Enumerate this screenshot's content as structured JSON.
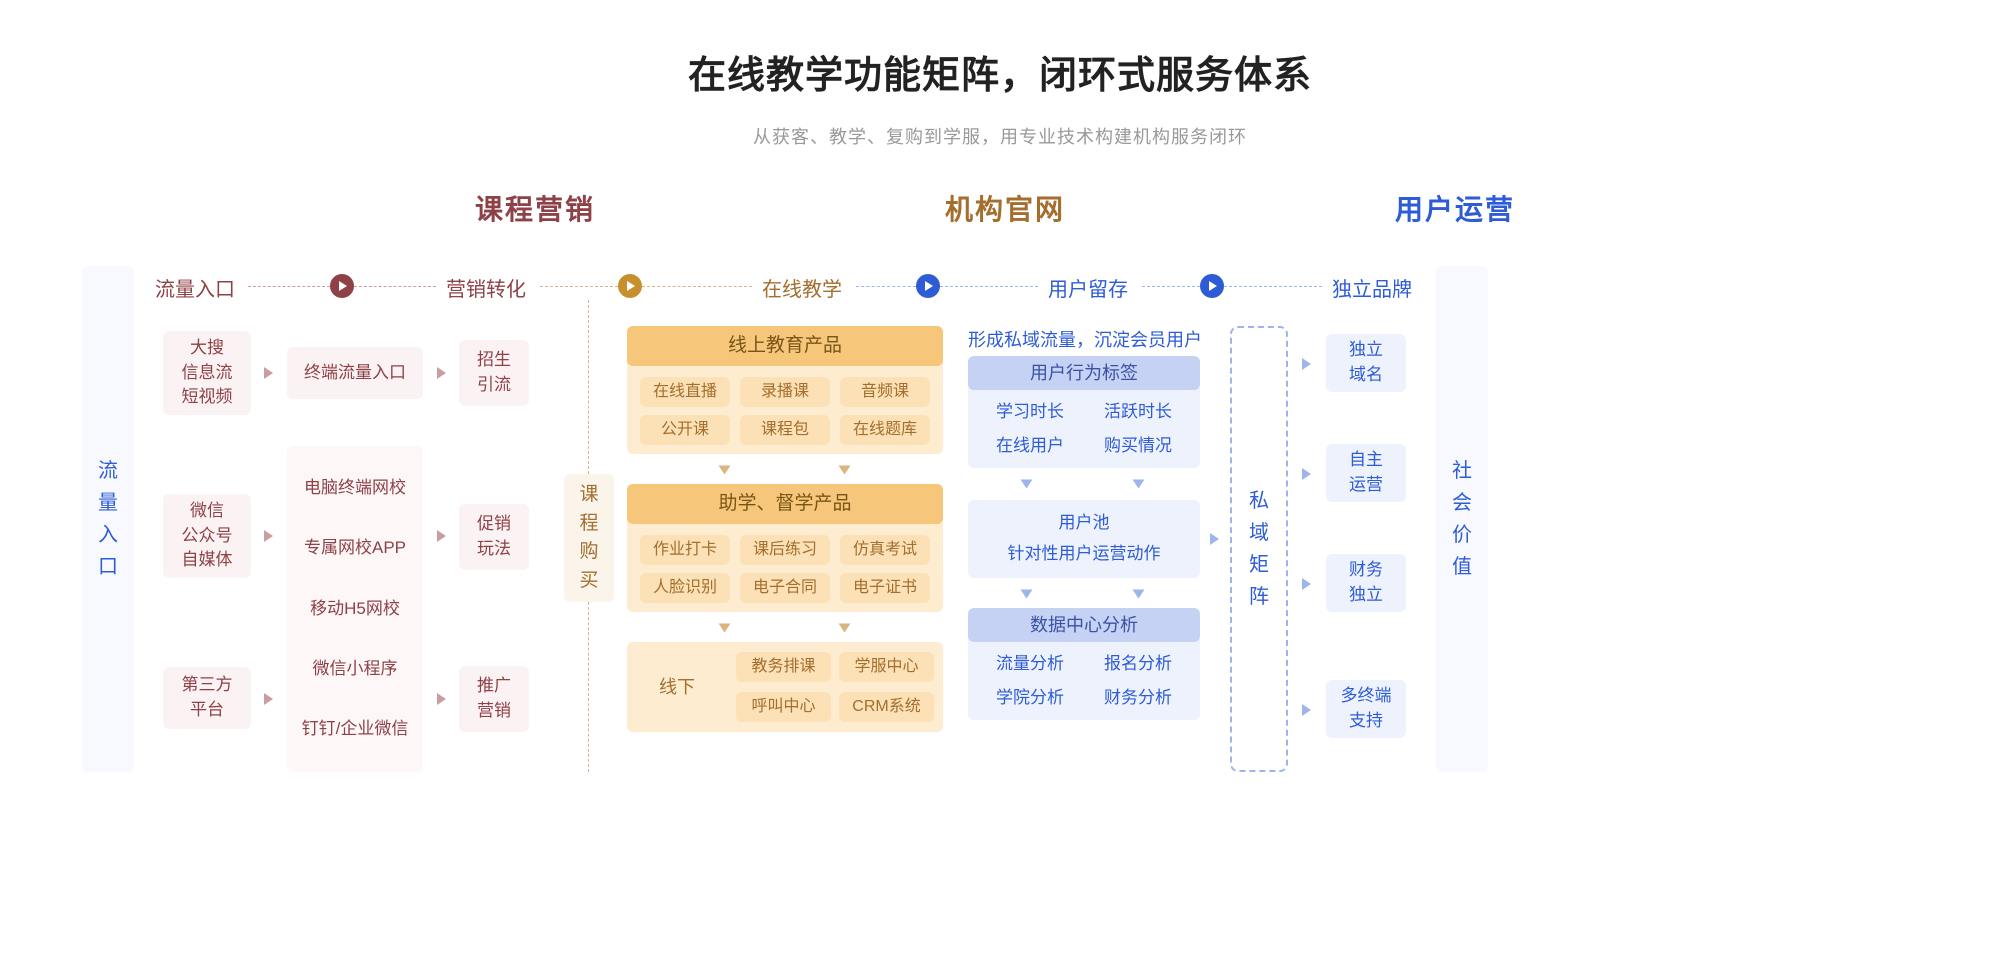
{
  "title": "在线教学功能矩阵，闭环式服务体系",
  "subtitle": "从获客、教学、复购到学服，用专业技术构建机构服务闭环",
  "colors": {
    "red": "#8e4146",
    "orange": "#a46e2e",
    "blue": "#2e5cd6",
    "red_bg": "#fbf2f3",
    "red_bg_light": "#fdf7f8",
    "orange_hdr": "#f6c77a",
    "orange_wrap": "#fdecd0",
    "orange_chip": "#fbe1b5",
    "blue_hdr": "#c6d2f4",
    "blue_wrap": "#eef2fd",
    "page_bg": "#ffffff"
  },
  "sections": {
    "marketing": "课程营销",
    "website": "机构官网",
    "operations": "用户运营"
  },
  "stages": {
    "traffic_entry": "流量入口",
    "conversion": "营销转化",
    "online_teach": "在线教学",
    "retention": "用户留存",
    "brand": "独立品牌"
  },
  "side_left": "流量入口",
  "side_right": "社会价值",
  "mid_connector": "课程购买",
  "marketing_col1": {
    "row1": "大搜\n信息流\n短视频",
    "row2": "微信\n公众号\n自媒体",
    "row3": "第三方\n平台"
  },
  "marketing_col2": {
    "row1": "终端流量入口",
    "items": [
      "电脑终端网校",
      "专属网校APP",
      "移动H5网校",
      "微信小程序",
      "钉钉/企业微信"
    ]
  },
  "marketing_col3": {
    "row1": "招生\n引流",
    "row2": "促销\n玩法",
    "row3": "推广\n营销"
  },
  "teaching": {
    "group1": {
      "header": "线上教育产品",
      "chips": [
        "在线直播",
        "录播课",
        "音频课",
        "公开课",
        "课程包",
        "在线题库"
      ]
    },
    "group2": {
      "header": "助学、督学产品",
      "chips": [
        "作业打卡",
        "课后练习",
        "仿真考试",
        "人脸识别",
        "电子合同",
        "电子证书"
      ]
    },
    "group3": {
      "side": "线下",
      "chips": [
        "教务排课",
        "学服中心",
        "呼叫中心",
        "CRM系统"
      ]
    }
  },
  "retention": {
    "toptext": "形成私域流量，沉淀会员用户",
    "g1": {
      "header": "用户行为标签",
      "chips": [
        "学习时长",
        "活跃时长",
        "在线用户",
        "购买情况"
      ]
    },
    "g2": {
      "line1": "用户池",
      "line2": "针对性用户运营动作"
    },
    "g3": {
      "header": "数据中心分析",
      "chips": [
        "流量分析",
        "报名分析",
        "学院分析",
        "财务分析"
      ]
    }
  },
  "private_box": "私域矩阵",
  "brand_items": [
    "独立\n域名",
    "自主\n运营",
    "财务\n独立",
    "多终端\n支持"
  ]
}
